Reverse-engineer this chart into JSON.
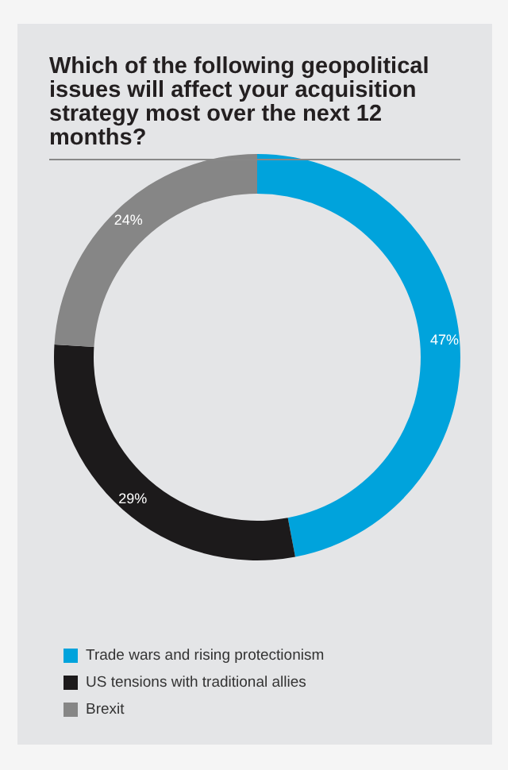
{
  "chart_data": {
    "type": "donut",
    "title": "Which of the following geopolitical issues will affect your acquisition strategy most over the next 12 months?",
    "categories": [
      "Trade wars and rising protectionism",
      "US tensions with traditional allies",
      "Brexit"
    ],
    "values": [
      47,
      29,
      24
    ],
    "value_labels": [
      "47%",
      "29%",
      "24%"
    ],
    "colors": [
      "#00a3dc",
      "#1c1a1b",
      "#868686"
    ],
    "legend": "bottom left"
  }
}
